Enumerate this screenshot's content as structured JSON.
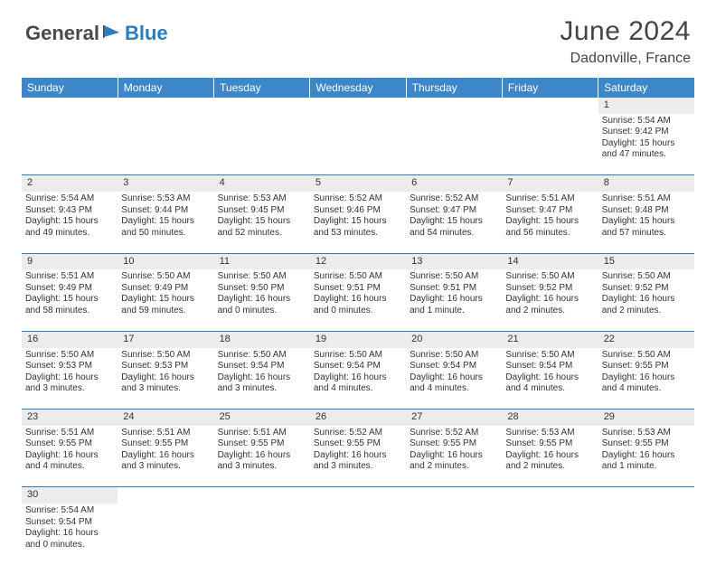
{
  "logo": {
    "part1": "General",
    "part2": "Blue"
  },
  "title": "June 2024",
  "location": "Dadonville, France",
  "colors": {
    "header_bg": "#3d87c9",
    "header_text": "#ffffff",
    "daynum_bg": "#ececec",
    "row_divider": "#2f7bbf",
    "logo_gray": "#4a4a4a",
    "logo_blue": "#2f7bbf"
  },
  "weekdays": [
    "Sunday",
    "Monday",
    "Tuesday",
    "Wednesday",
    "Thursday",
    "Friday",
    "Saturday"
  ],
  "weeks": [
    {
      "nums": [
        "",
        "",
        "",
        "",
        "",
        "",
        "1"
      ],
      "cells": [
        null,
        null,
        null,
        null,
        null,
        null,
        {
          "sunrise": "Sunrise: 5:54 AM",
          "sunset": "Sunset: 9:42 PM",
          "daylight": "Daylight: 15 hours and 47 minutes."
        }
      ]
    },
    {
      "nums": [
        "2",
        "3",
        "4",
        "5",
        "6",
        "7",
        "8"
      ],
      "cells": [
        {
          "sunrise": "Sunrise: 5:54 AM",
          "sunset": "Sunset: 9:43 PM",
          "daylight": "Daylight: 15 hours and 49 minutes."
        },
        {
          "sunrise": "Sunrise: 5:53 AM",
          "sunset": "Sunset: 9:44 PM",
          "daylight": "Daylight: 15 hours and 50 minutes."
        },
        {
          "sunrise": "Sunrise: 5:53 AM",
          "sunset": "Sunset: 9:45 PM",
          "daylight": "Daylight: 15 hours and 52 minutes."
        },
        {
          "sunrise": "Sunrise: 5:52 AM",
          "sunset": "Sunset: 9:46 PM",
          "daylight": "Daylight: 15 hours and 53 minutes."
        },
        {
          "sunrise": "Sunrise: 5:52 AM",
          "sunset": "Sunset: 9:47 PM",
          "daylight": "Daylight: 15 hours and 54 minutes."
        },
        {
          "sunrise": "Sunrise: 5:51 AM",
          "sunset": "Sunset: 9:47 PM",
          "daylight": "Daylight: 15 hours and 56 minutes."
        },
        {
          "sunrise": "Sunrise: 5:51 AM",
          "sunset": "Sunset: 9:48 PM",
          "daylight": "Daylight: 15 hours and 57 minutes."
        }
      ]
    },
    {
      "nums": [
        "9",
        "10",
        "11",
        "12",
        "13",
        "14",
        "15"
      ],
      "cells": [
        {
          "sunrise": "Sunrise: 5:51 AM",
          "sunset": "Sunset: 9:49 PM",
          "daylight": "Daylight: 15 hours and 58 minutes."
        },
        {
          "sunrise": "Sunrise: 5:50 AM",
          "sunset": "Sunset: 9:49 PM",
          "daylight": "Daylight: 15 hours and 59 minutes."
        },
        {
          "sunrise": "Sunrise: 5:50 AM",
          "sunset": "Sunset: 9:50 PM",
          "daylight": "Daylight: 16 hours and 0 minutes."
        },
        {
          "sunrise": "Sunrise: 5:50 AM",
          "sunset": "Sunset: 9:51 PM",
          "daylight": "Daylight: 16 hours and 0 minutes."
        },
        {
          "sunrise": "Sunrise: 5:50 AM",
          "sunset": "Sunset: 9:51 PM",
          "daylight": "Daylight: 16 hours and 1 minute."
        },
        {
          "sunrise": "Sunrise: 5:50 AM",
          "sunset": "Sunset: 9:52 PM",
          "daylight": "Daylight: 16 hours and 2 minutes."
        },
        {
          "sunrise": "Sunrise: 5:50 AM",
          "sunset": "Sunset: 9:52 PM",
          "daylight": "Daylight: 16 hours and 2 minutes."
        }
      ]
    },
    {
      "nums": [
        "16",
        "17",
        "18",
        "19",
        "20",
        "21",
        "22"
      ],
      "cells": [
        {
          "sunrise": "Sunrise: 5:50 AM",
          "sunset": "Sunset: 9:53 PM",
          "daylight": "Daylight: 16 hours and 3 minutes."
        },
        {
          "sunrise": "Sunrise: 5:50 AM",
          "sunset": "Sunset: 9:53 PM",
          "daylight": "Daylight: 16 hours and 3 minutes."
        },
        {
          "sunrise": "Sunrise: 5:50 AM",
          "sunset": "Sunset: 9:54 PM",
          "daylight": "Daylight: 16 hours and 3 minutes."
        },
        {
          "sunrise": "Sunrise: 5:50 AM",
          "sunset": "Sunset: 9:54 PM",
          "daylight": "Daylight: 16 hours and 4 minutes."
        },
        {
          "sunrise": "Sunrise: 5:50 AM",
          "sunset": "Sunset: 9:54 PM",
          "daylight": "Daylight: 16 hours and 4 minutes."
        },
        {
          "sunrise": "Sunrise: 5:50 AM",
          "sunset": "Sunset: 9:54 PM",
          "daylight": "Daylight: 16 hours and 4 minutes."
        },
        {
          "sunrise": "Sunrise: 5:50 AM",
          "sunset": "Sunset: 9:55 PM",
          "daylight": "Daylight: 16 hours and 4 minutes."
        }
      ]
    },
    {
      "nums": [
        "23",
        "24",
        "25",
        "26",
        "27",
        "28",
        "29"
      ],
      "cells": [
        {
          "sunrise": "Sunrise: 5:51 AM",
          "sunset": "Sunset: 9:55 PM",
          "daylight": "Daylight: 16 hours and 4 minutes."
        },
        {
          "sunrise": "Sunrise: 5:51 AM",
          "sunset": "Sunset: 9:55 PM",
          "daylight": "Daylight: 16 hours and 3 minutes."
        },
        {
          "sunrise": "Sunrise: 5:51 AM",
          "sunset": "Sunset: 9:55 PM",
          "daylight": "Daylight: 16 hours and 3 minutes."
        },
        {
          "sunrise": "Sunrise: 5:52 AM",
          "sunset": "Sunset: 9:55 PM",
          "daylight": "Daylight: 16 hours and 3 minutes."
        },
        {
          "sunrise": "Sunrise: 5:52 AM",
          "sunset": "Sunset: 9:55 PM",
          "daylight": "Daylight: 16 hours and 2 minutes."
        },
        {
          "sunrise": "Sunrise: 5:53 AM",
          "sunset": "Sunset: 9:55 PM",
          "daylight": "Daylight: 16 hours and 2 minutes."
        },
        {
          "sunrise": "Sunrise: 5:53 AM",
          "sunset": "Sunset: 9:55 PM",
          "daylight": "Daylight: 16 hours and 1 minute."
        }
      ]
    },
    {
      "nums": [
        "30",
        "",
        "",
        "",
        "",
        "",
        ""
      ],
      "cells": [
        {
          "sunrise": "Sunrise: 5:54 AM",
          "sunset": "Sunset: 9:54 PM",
          "daylight": "Daylight: 16 hours and 0 minutes."
        },
        null,
        null,
        null,
        null,
        null,
        null
      ]
    }
  ]
}
